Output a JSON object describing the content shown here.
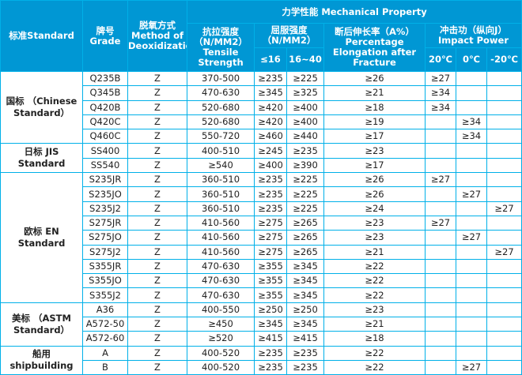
{
  "headers": {
    "standard": "标准Standard",
    "grade": "牌号 Grade",
    "deox": "脱氧方式 Method of Deoxidization",
    "mech": "力学性能 Mechanical Property",
    "tensile": "抗拉强度 （N/MM2） Tensile Strength",
    "yield": "屈服强度 （N/MM2）",
    "yield_a": "≤16",
    "yield_b": "16~40",
    "elong": "断后伸长率（A%） Percentage Elongation after Fracture",
    "impact": "冲击功（纵向J） Impact Power",
    "impact_a": "20℃",
    "impact_b": "0℃",
    "impact_c": "-20℃"
  },
  "groups": [
    {
      "label": "国标 （Chinese Standard）",
      "rows": [
        {
          "grade": "Q235B",
          "deox": "Z",
          "tensile": "370-500",
          "y16": "≥235",
          "y40": "≥225",
          "elong": "≥26",
          "i20": "≥27",
          "i0": "",
          "im20": ""
        },
        {
          "grade": "Q345B",
          "deox": "Z",
          "tensile": "470-630",
          "y16": "≥345",
          "y40": "≥325",
          "elong": "≥21",
          "i20": "≥34",
          "i0": "",
          "im20": ""
        },
        {
          "grade": "Q420B",
          "deox": "Z",
          "tensile": "520-680",
          "y16": "≥420",
          "y40": "≥400",
          "elong": "≥18",
          "i20": "≥34",
          "i0": "",
          "im20": ""
        },
        {
          "grade": "Q420C",
          "deox": "Z",
          "tensile": "520-680",
          "y16": "≥420",
          "y40": "≥400",
          "elong": "≥19",
          "i20": "",
          "i0": "≥34",
          "im20": ""
        },
        {
          "grade": "Q460C",
          "deox": "Z",
          "tensile": "550-720",
          "y16": "≥460",
          "y40": "≥440",
          "elong": "≥17",
          "i20": "",
          "i0": "≥34",
          "im20": ""
        }
      ]
    },
    {
      "label": "日标 JIS Standard",
      "rows": [
        {
          "grade": "SS400",
          "deox": "Z",
          "tensile": "400-510",
          "y16": "≥245",
          "y40": "≥235",
          "elong": "≥23",
          "i20": "",
          "i0": "",
          "im20": ""
        },
        {
          "grade": "SS540",
          "deox": "Z",
          "tensile": "≥540",
          "y16": "≥400",
          "y40": "≥390",
          "elong": "≥17",
          "i20": "",
          "i0": "",
          "im20": ""
        }
      ]
    },
    {
      "label": "欧标 EN Standard",
      "rows": [
        {
          "grade": "S235JR",
          "deox": "Z",
          "tensile": "360-510",
          "y16": "≥235",
          "y40": "≥225",
          "elong": "≥26",
          "i20": "≥27",
          "i0": "",
          "im20": ""
        },
        {
          "grade": "S235JO",
          "deox": "Z",
          "tensile": "360-510",
          "y16": "≥235",
          "y40": "≥225",
          "elong": "≥26",
          "i20": "",
          "i0": "≥27",
          "im20": ""
        },
        {
          "grade": "S235J2",
          "deox": "Z",
          "tensile": "360-510",
          "y16": "≥235",
          "y40": "≥225",
          "elong": "≥24",
          "i20": "",
          "i0": "",
          "im20": "≥27"
        },
        {
          "grade": "S275JR",
          "deox": "Z",
          "tensile": "410-560",
          "y16": "≥275",
          "y40": "≥265",
          "elong": "≥23",
          "i20": "≥27",
          "i0": "",
          "im20": ""
        },
        {
          "grade": "S275JO",
          "deox": "Z",
          "tensile": "410-560",
          "y16": "≥275",
          "y40": "≥265",
          "elong": "≥23",
          "i20": "",
          "i0": "≥27",
          "im20": ""
        },
        {
          "grade": "S275J2",
          "deox": "Z",
          "tensile": "410-560",
          "y16": "≥275",
          "y40": "≥265",
          "elong": "≥21",
          "i20": "",
          "i0": "",
          "im20": "≥27"
        },
        {
          "grade": "S355JR",
          "deox": "Z",
          "tensile": "470-630",
          "y16": "≥355",
          "y40": "≥345",
          "elong": "≥22",
          "i20": "",
          "i0": "",
          "im20": ""
        },
        {
          "grade": "S355JO",
          "deox": "Z",
          "tensile": "470-630",
          "y16": "≥355",
          "y40": "≥345",
          "elong": "≥22",
          "i20": "",
          "i0": "",
          "im20": ""
        },
        {
          "grade": "S355J2",
          "deox": "Z",
          "tensile": "470-630",
          "y16": "≥355",
          "y40": "≥345",
          "elong": "≥22",
          "i20": "",
          "i0": "",
          "im20": ""
        }
      ]
    },
    {
      "label": "美标 （ASTM Standard）",
      "rows": [
        {
          "grade": "A36",
          "deox": "Z",
          "tensile": "400-550",
          "y16": "≥250",
          "y40": "≥250",
          "elong": "≥23",
          "i20": "",
          "i0": "",
          "im20": ""
        },
        {
          "grade": "A572-50",
          "deox": "Z",
          "tensile": "≥450",
          "y16": "≥345",
          "y40": "≥345",
          "elong": "≥21",
          "i20": "",
          "i0": "",
          "im20": ""
        },
        {
          "grade": "A572-60",
          "deox": "Z",
          "tensile": "≥520",
          "y16": "≥415",
          "y40": "≥415",
          "elong": "≥18",
          "i20": "",
          "i0": "",
          "im20": ""
        }
      ]
    },
    {
      "label": "船用 shipbuilding",
      "rows": [
        {
          "grade": "A",
          "deox": "Z",
          "tensile": "400-520",
          "y16": "≥235",
          "y40": "≥235",
          "elong": "≥22",
          "i20": "",
          "i0": "",
          "im20": ""
        },
        {
          "grade": "B",
          "deox": "Z",
          "tensile": "400-520",
          "y16": "≥235",
          "y40": "≥235",
          "elong": "≥22",
          "i20": "",
          "i0": "≥27",
          "im20": ""
        }
      ]
    }
  ]
}
